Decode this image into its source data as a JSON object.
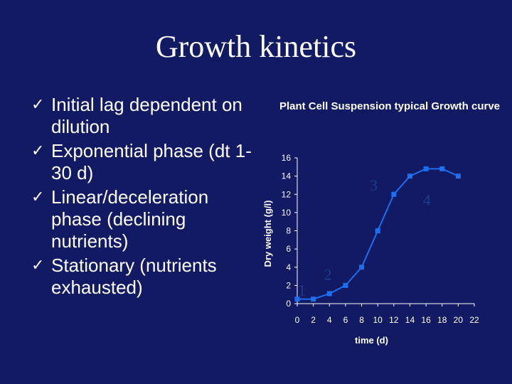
{
  "slide": {
    "title": "Growth kinetics",
    "bullets": [
      "Initial lag dependent on dilution",
      "Exponential phase (dt 1-30 d)",
      "Linear/deceleration phase (declining nutrients)",
      "Stationary (nutrients exhausted)"
    ],
    "check_glyph": "✓"
  },
  "chart_data": {
    "type": "line",
    "title": "Plant Cell Suspension typical Growth curve",
    "xlabel": "time (d)",
    "ylabel": "Dry weight (g/l)",
    "xlim": [
      0,
      22
    ],
    "ylim": [
      0,
      16
    ],
    "xticks": [
      0,
      2,
      4,
      6,
      8,
      10,
      12,
      14,
      16,
      18,
      20,
      22
    ],
    "yticks": [
      0,
      2,
      4,
      6,
      8,
      10,
      12,
      14,
      16
    ],
    "grid": false,
    "series": [
      {
        "x": [
          0,
          2,
          4,
          6,
          8,
          10,
          12,
          14,
          16,
          18,
          20
        ],
        "y": [
          0.5,
          0.5,
          1.1,
          2,
          4,
          8,
          12,
          14,
          14.8,
          14.8,
          14
        ],
        "color": "#1e6ef0"
      }
    ],
    "annotations": [
      {
        "text": "1",
        "x": 0.6,
        "y": 0.9
      },
      {
        "text": "2",
        "x": 3.8,
        "y": 2.6
      },
      {
        "text": "3",
        "x": 9.5,
        "y": 12.4
      },
      {
        "text": "4",
        "x": 16.1,
        "y": 10.8
      }
    ],
    "colors": {
      "axis": "#ffffff",
      "annotation": "#1e3c8c",
      "background": "#121a63"
    }
  }
}
